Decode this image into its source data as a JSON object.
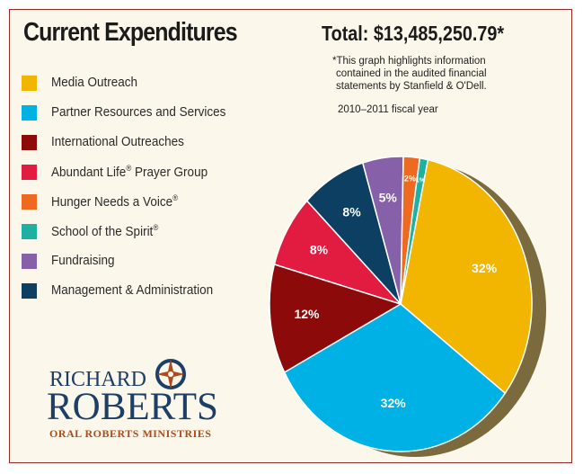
{
  "title": "Current Expenditures",
  "total": "Total: $13,485,250.79*",
  "note_lines": [
    "*This graph highlights information",
    "contained in the audited financial",
    "statements by Stanfield & O'Dell."
  ],
  "fiscal_year": "2010–2011 fiscal year",
  "legend": [
    {
      "label": "Media Outreach",
      "mark": "",
      "color": "#f2b600"
    },
    {
      "label": "Partner Resources and Services",
      "mark": "",
      "color": "#00b1e6"
    },
    {
      "label": "International Outreaches",
      "mark": "",
      "color": "#8c0a0a"
    },
    {
      "label": "Abundant Life",
      "mark": "®",
      "suffix": " Prayer Group",
      "color": "#e21b41"
    },
    {
      "label": "Hunger Needs a Voice",
      "mark": "®",
      "suffix": "",
      "color": "#ef6a21"
    },
    {
      "label": "School of the Spirit",
      "mark": "®",
      "suffix": "",
      "color": "#1eb0a0"
    },
    {
      "label": "Fundraising",
      "mark": "",
      "color": "#8660a8"
    },
    {
      "label": "Management & Administration",
      "mark": "",
      "color": "#0c3f62"
    }
  ],
  "chart_data": {
    "type": "pie",
    "title": "Current Expenditures",
    "slices": [
      {
        "name": "Media Outreach",
        "value": 32,
        "label": "32%",
        "color": "#f2b600"
      },
      {
        "name": "Partner Resources and Services",
        "value": 32,
        "label": "32%",
        "color": "#00b1e6"
      },
      {
        "name": "International Outreaches",
        "value": 12,
        "label": "12%",
        "color": "#8c0a0a"
      },
      {
        "name": "Abundant Life® Prayer Group",
        "value": 8,
        "label": "8%",
        "color": "#e21b41"
      },
      {
        "name": "Management & Administration",
        "value": 8,
        "label": "8%",
        "color": "#0c3f62"
      },
      {
        "name": "Fundraising",
        "value": 5,
        "label": "5%",
        "color": "#8660a8"
      },
      {
        "name": "Hunger Needs a Voice®",
        "value": 2,
        "label": "2%",
        "color": "#ef6a21"
      },
      {
        "name": "School of the Spirit®",
        "value": 1,
        "label": "1%",
        "color": "#1eb0a0"
      }
    ],
    "legend_position": "left"
  },
  "logo": {
    "line1": "RICHARD",
    "line2": "ROBERTS",
    "line3": "ORAL ROBERTS MINISTRIES"
  }
}
